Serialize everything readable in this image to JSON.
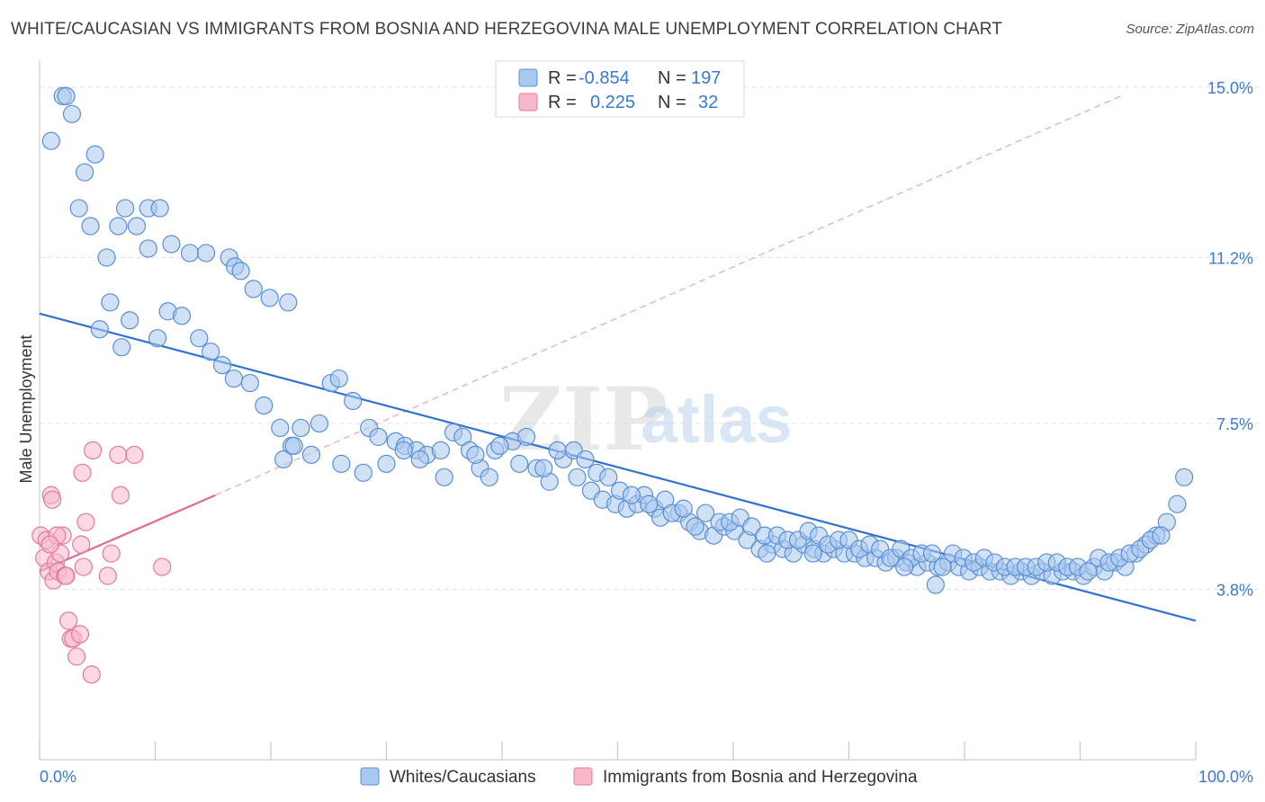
{
  "title": "WHITE/CAUCASIAN VS IMMIGRANTS FROM BOSNIA AND HERZEGOVINA MALE UNEMPLOYMENT CORRELATION CHART",
  "source": "Source: ZipAtlas.com",
  "watermark": {
    "zip": "ZIP",
    "atlas": "atlas"
  },
  "legend_top": [
    {
      "r_label": "R =",
      "r_value": "-0.854",
      "n_label": "N =",
      "n_value": "197",
      "color": "#a9c8ef",
      "edge": "#5a8fd6"
    },
    {
      "r_label": "R =",
      "r_value": "0.225",
      "n_label": "N =",
      "n_value": "32",
      "color": "#f7b8ca",
      "edge": "#e07aa0"
    }
  ],
  "legend_bottom": [
    {
      "label": "Whites/Caucasians",
      "color": "#a9c8ef",
      "edge": "#5a8fd6"
    },
    {
      "label": "Immigrants from Bosnia and Herzegovina",
      "color": "#f7b8ca",
      "edge": "#e07aa0"
    }
  ],
  "chart_data": {
    "type": "scatter",
    "title": "WHITE/CAUCASIAN VS IMMIGRANTS FROM BOSNIA AND HERZEGOVINA MALE UNEMPLOYMENT CORRELATION CHART",
    "xlabel": "",
    "ylabel": "Male Unemployment",
    "xlim": [
      0,
      100
    ],
    "ylim": [
      0.0,
      15.7
    ],
    "x_tick_labels": [
      "0.0%",
      "100.0%"
    ],
    "y_ticks": [
      3.8,
      7.5,
      11.2,
      15.0
    ],
    "y_tick_labels": [
      "3.8%",
      "7.5%",
      "11.2%",
      "15.0%"
    ],
    "grid": true,
    "legend_position": "top-center",
    "series": [
      {
        "name": "Whites/Caucasians",
        "color": "#a9c8ef",
        "edge": "#5a8fd6",
        "trend": {
          "x": [
            0,
            100
          ],
          "y": [
            9.95,
            3.1
          ],
          "color": "#2f72d1"
        },
        "points": [
          [
            1,
            13.8
          ],
          [
            2,
            14.8
          ],
          [
            2.3,
            14.8
          ],
          [
            2.8,
            14.4
          ],
          [
            3.4,
            12.3
          ],
          [
            3.9,
            13.1
          ],
          [
            4.8,
            13.5
          ],
          [
            4.4,
            11.9
          ],
          [
            5.8,
            11.2
          ],
          [
            7.4,
            12.3
          ],
          [
            9.4,
            12.3
          ],
          [
            10.4,
            12.3
          ],
          [
            11.4,
            11.5
          ],
          [
            6.8,
            11.9
          ],
          [
            8.4,
            11.9
          ],
          [
            9.4,
            11.4
          ],
          [
            13,
            11.3
          ],
          [
            14.4,
            11.3
          ],
          [
            16.4,
            11.2
          ],
          [
            16.9,
            11.0
          ],
          [
            17.4,
            10.9
          ],
          [
            18.5,
            10.5
          ],
          [
            19.9,
            10.3
          ],
          [
            21.5,
            10.2
          ],
          [
            7.8,
            9.8
          ],
          [
            6.1,
            10.2
          ],
          [
            7.1,
            9.2
          ],
          [
            5.2,
            9.6
          ],
          [
            10.2,
            9.4
          ],
          [
            11.1,
            10.0
          ],
          [
            12.3,
            9.9
          ],
          [
            13.8,
            9.4
          ],
          [
            14.8,
            9.1
          ],
          [
            15.8,
            8.8
          ],
          [
            16.8,
            8.5
          ],
          [
            18.2,
            8.4
          ],
          [
            19.4,
            7.9
          ],
          [
            20.8,
            7.4
          ],
          [
            21.8,
            7.0
          ],
          [
            21.1,
            6.7
          ],
          [
            22.6,
            7.4
          ],
          [
            24.2,
            7.5
          ],
          [
            25.2,
            8.4
          ],
          [
            25.9,
            8.5
          ],
          [
            27.1,
            8.0
          ],
          [
            28.5,
            7.4
          ],
          [
            29.3,
            7.2
          ],
          [
            30.8,
            7.1
          ],
          [
            31.6,
            7.0
          ],
          [
            32.6,
            6.9
          ],
          [
            33.5,
            6.8
          ],
          [
            34.7,
            6.9
          ],
          [
            35.8,
            7.3
          ],
          [
            36.6,
            7.2
          ],
          [
            37.2,
            6.9
          ],
          [
            38.1,
            6.5
          ],
          [
            38.9,
            6.3
          ],
          [
            39.4,
            6.9
          ],
          [
            40.9,
            7.1
          ],
          [
            42.1,
            7.2
          ],
          [
            43.0,
            6.5
          ],
          [
            44.1,
            6.2
          ],
          [
            45.3,
            6.7
          ],
          [
            46.5,
            6.3
          ],
          [
            47.7,
            6.0
          ],
          [
            48.7,
            5.8
          ],
          [
            49.8,
            5.7
          ],
          [
            50.8,
            5.6
          ],
          [
            51.7,
            5.7
          ],
          [
            52.3,
            5.9
          ],
          [
            53.2,
            5.6
          ],
          [
            54.1,
            5.8
          ],
          [
            55.3,
            5.5
          ],
          [
            56.2,
            5.3
          ],
          [
            57.1,
            5.1
          ],
          [
            58.3,
            5.0
          ],
          [
            59.2,
            5.2
          ],
          [
            60.1,
            5.1
          ],
          [
            61.2,
            4.9
          ],
          [
            62.3,
            4.7
          ],
          [
            63.4,
            4.8
          ],
          [
            64.3,
            4.7
          ],
          [
            65.2,
            4.6
          ],
          [
            66.1,
            4.8
          ],
          [
            67.0,
            4.7
          ],
          [
            67.8,
            4.6
          ],
          [
            68.7,
            4.7
          ],
          [
            69.6,
            4.6
          ],
          [
            70.5,
            4.6
          ],
          [
            71.4,
            4.5
          ],
          [
            72.3,
            4.5
          ],
          [
            73.2,
            4.4
          ],
          [
            74.1,
            4.5
          ],
          [
            75.0,
            4.4
          ],
          [
            75.9,
            4.3
          ],
          [
            76.8,
            4.4
          ],
          [
            77.7,
            4.3
          ],
          [
            78.6,
            4.4
          ],
          [
            79.5,
            4.3
          ],
          [
            80.4,
            4.2
          ],
          [
            81.3,
            4.3
          ],
          [
            82.2,
            4.2
          ],
          [
            83.1,
            4.2
          ],
          [
            84.0,
            4.1
          ],
          [
            84.9,
            4.2
          ],
          [
            85.8,
            4.1
          ],
          [
            86.7,
            4.2
          ],
          [
            87.6,
            4.1
          ],
          [
            88.5,
            4.2
          ],
          [
            89.4,
            4.2
          ],
          [
            90.3,
            4.1
          ],
          [
            91.2,
            4.3
          ],
          [
            92.1,
            4.2
          ],
          [
            93.0,
            4.4
          ],
          [
            93.9,
            4.3
          ],
          [
            94.8,
            4.6
          ],
          [
            95.7,
            4.8
          ],
          [
            96.6,
            5.0
          ],
          [
            97.5,
            5.3
          ],
          [
            98.4,
            5.7
          ],
          [
            99.0,
            6.3
          ],
          [
            22,
            7.0
          ],
          [
            23.5,
            6.8
          ],
          [
            26.1,
            6.6
          ],
          [
            28,
            6.4
          ],
          [
            30,
            6.6
          ],
          [
            31.5,
            6.9
          ],
          [
            32.9,
            6.7
          ],
          [
            35,
            6.3
          ],
          [
            37.7,
            6.8
          ],
          [
            39.8,
            7.0
          ],
          [
            41.5,
            6.6
          ],
          [
            43.6,
            6.5
          ],
          [
            44.8,
            6.9
          ],
          [
            46.2,
            6.9
          ],
          [
            47.2,
            6.7
          ],
          [
            48.2,
            6.4
          ],
          [
            49.2,
            6.3
          ],
          [
            50.2,
            6.0
          ],
          [
            51.2,
            5.9
          ],
          [
            52.7,
            5.7
          ],
          [
            53.7,
            5.4
          ],
          [
            54.7,
            5.5
          ],
          [
            55.7,
            5.6
          ],
          [
            56.7,
            5.2
          ],
          [
            57.6,
            5.5
          ],
          [
            58.8,
            5.3
          ],
          [
            59.7,
            5.3
          ],
          [
            60.6,
            5.4
          ],
          [
            61.6,
            5.2
          ],
          [
            62.7,
            5.0
          ],
          [
            63.8,
            5.0
          ],
          [
            64.7,
            4.9
          ],
          [
            65.6,
            4.9
          ],
          [
            66.5,
            5.1
          ],
          [
            67.4,
            5.0
          ],
          [
            68.2,
            4.8
          ],
          [
            69.1,
            4.9
          ],
          [
            70.0,
            4.9
          ],
          [
            70.9,
            4.7
          ],
          [
            71.8,
            4.8
          ],
          [
            72.7,
            4.7
          ],
          [
            73.6,
            4.5
          ],
          [
            74.5,
            4.7
          ],
          [
            75.4,
            4.5
          ],
          [
            76.3,
            4.6
          ],
          [
            77.2,
            4.6
          ],
          [
            78.1,
            4.3
          ],
          [
            79.0,
            4.6
          ],
          [
            79.9,
            4.5
          ],
          [
            80.8,
            4.4
          ],
          [
            81.7,
            4.5
          ],
          [
            82.6,
            4.4
          ],
          [
            83.5,
            4.3
          ],
          [
            84.4,
            4.3
          ],
          [
            85.3,
            4.3
          ],
          [
            86.2,
            4.3
          ],
          [
            87.1,
            4.4
          ],
          [
            88.0,
            4.4
          ],
          [
            88.9,
            4.3
          ],
          [
            89.8,
            4.3
          ],
          [
            90.7,
            4.2
          ],
          [
            91.6,
            4.5
          ],
          [
            92.5,
            4.4
          ],
          [
            93.4,
            4.5
          ],
          [
            94.3,
            4.6
          ],
          [
            95.2,
            4.7
          ],
          [
            96.1,
            4.9
          ],
          [
            97.0,
            5.0
          ],
          [
            62.9,
            4.6
          ],
          [
            66.9,
            4.6
          ],
          [
            74.8,
            4.3
          ],
          [
            77.5,
            3.9
          ]
        ]
      },
      {
        "name": "Immigrants from Bosnia and Herzegovina",
        "color": "#f7b8ca",
        "edge": "#e07aa0",
        "trend": {
          "x": [
            0,
            15.2
          ],
          "y": [
            4.2,
            5.9
          ],
          "color": "#e26a95",
          "dashed_ext": {
            "x": [
              15.2,
              93.5
            ],
            "y": [
              5.9,
              14.8
            ]
          }
        },
        "points": [
          [
            0.1,
            5.0
          ],
          [
            0.4,
            4.5
          ],
          [
            0.6,
            4.9
          ],
          [
            0.8,
            4.2
          ],
          [
            1.2,
            4.0
          ],
          [
            1.4,
            4.4
          ],
          [
            1.6,
            4.2
          ],
          [
            1.8,
            4.6
          ],
          [
            2.0,
            5.0
          ],
          [
            2.2,
            4.1
          ],
          [
            1.0,
            5.9
          ],
          [
            1.5,
            5.0
          ],
          [
            2.5,
            3.1
          ],
          [
            2.7,
            2.7
          ],
          [
            2.9,
            2.7
          ],
          [
            3.2,
            2.3
          ],
          [
            3.5,
            2.8
          ],
          [
            3.8,
            4.3
          ],
          [
            3.6,
            4.8
          ],
          [
            3.7,
            6.4
          ],
          [
            4.0,
            5.3
          ],
          [
            4.5,
            1.9
          ],
          [
            4.6,
            6.9
          ],
          [
            5.9,
            4.1
          ],
          [
            6.2,
            4.6
          ],
          [
            6.8,
            6.8
          ],
          [
            7.0,
            5.9
          ],
          [
            8.2,
            6.8
          ],
          [
            10.6,
            4.3
          ],
          [
            1.1,
            5.8
          ],
          [
            0.9,
            4.8
          ],
          [
            2.3,
            4.1
          ]
        ]
      }
    ]
  }
}
